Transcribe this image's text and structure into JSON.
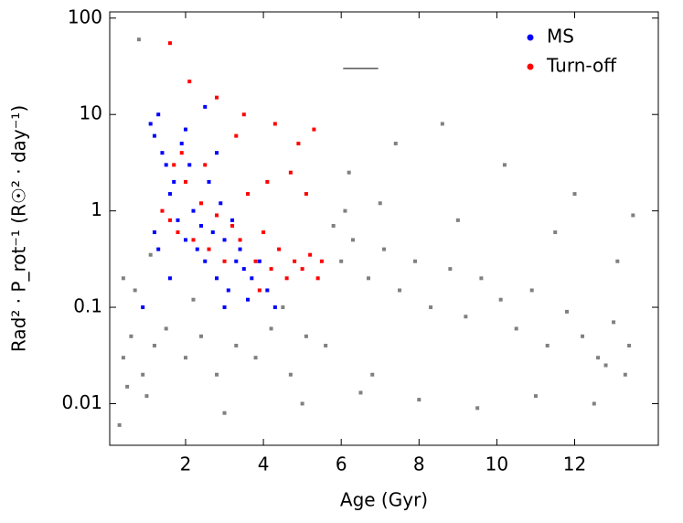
{
  "chart_data": {
    "type": "scatter",
    "xlabel": "Age (Gyr)",
    "ylabel": "Rad² · P_rot⁻¹ (R☉² · day⁻¹)",
    "xlim": [
      0.05,
      14.15
    ],
    "xticks": [
      2,
      4,
      6,
      8,
      10,
      12
    ],
    "ylim": [
      0.0037,
      116
    ],
    "yticks": [
      0.01,
      0.1,
      1,
      10,
      100
    ],
    "log_y": true,
    "legend": "upper right",
    "errorbar": {
      "x": 6.5,
      "y": 30,
      "xerr": 0.45,
      "color": "#000000"
    },
    "series": [
      {
        "color": "#808080",
        "x": [
          0.4,
          0.6,
          0.9,
          1.2,
          1.5,
          2.0,
          2.4,
          2.8,
          3.3,
          3.8,
          4.2,
          4.7,
          5.1,
          5.6,
          6.0,
          6.3,
          6.7,
          7.1,
          7.5,
          7.9,
          8.3,
          8.8,
          9.2,
          9.6,
          10.1,
          10.5,
          10.9,
          11.3,
          11.8,
          12.2,
          12.6,
          13.0,
          13.4,
          0.5,
          1.0,
          3.0,
          5.0,
          6.5,
          8.0,
          9.5,
          11.0,
          12.5,
          13.3,
          0.7,
          2.2,
          4.5,
          7.0,
          9.0,
          11.5,
          13.1,
          6.2,
          7.4,
          8.6,
          10.2,
          12.0,
          6.8,
          0.3,
          0.8,
          5.8,
          6.1,
          13.5,
          12.8,
          0.4,
          1.1
        ],
        "values": [
          0.03,
          0.05,
          0.02,
          0.04,
          0.06,
          0.03,
          0.05,
          0.02,
          0.04,
          0.03,
          0.06,
          0.02,
          0.05,
          0.04,
          0.3,
          0.5,
          0.2,
          0.4,
          0.15,
          0.3,
          0.1,
          0.25,
          0.08,
          0.2,
          0.12,
          0.06,
          0.15,
          0.04,
          0.09,
          0.05,
          0.03,
          0.07,
          0.04,
          0.015,
          0.012,
          0.008,
          0.01,
          0.013,
          0.011,
          0.009,
          0.012,
          0.01,
          0.02,
          0.15,
          0.12,
          0.1,
          1.2,
          0.8,
          0.6,
          0.3,
          2.5,
          5,
          8,
          3,
          1.5,
          0.02,
          0.006,
          60,
          0.7,
          1,
          0.9,
          0.025,
          0.2,
          0.35
        ]
      },
      {
        "name": "MS",
        "color": "#0000ff",
        "x": [
          1.1,
          1.2,
          1.3,
          1.4,
          1.5,
          1.6,
          1.7,
          1.8,
          1.9,
          2.0,
          2.1,
          2.2,
          2.3,
          2.4,
          2.5,
          2.6,
          2.7,
          2.8,
          2.9,
          3.0,
          3.1,
          3.2,
          3.3,
          3.4,
          3.5,
          3.6,
          3.7,
          3.9,
          4.1,
          4.3,
          1.3,
          1.6,
          2.0,
          2.5,
          3.0,
          0.9,
          1.2,
          2.8
        ],
        "values": [
          8,
          6,
          10,
          4,
          3,
          1.5,
          2,
          0.8,
          5,
          0.5,
          3,
          1,
          0.4,
          0.7,
          0.3,
          2,
          0.6,
          0.2,
          1.2,
          0.5,
          0.15,
          0.8,
          0.3,
          0.4,
          0.25,
          0.12,
          0.2,
          0.3,
          0.15,
          0.1,
          0.4,
          0.2,
          7,
          12,
          0.1,
          0.1,
          0.6,
          4
        ]
      },
      {
        "name": "Turn-off",
        "color": "#ff0000",
        "x": [
          1.4,
          1.6,
          1.8,
          2.0,
          2.2,
          2.4,
          2.6,
          2.8,
          3.0,
          3.2,
          3.4,
          3.6,
          3.8,
          4.0,
          4.2,
          4.4,
          4.6,
          4.8,
          5.0,
          5.2,
          5.4,
          5.5,
          1.6,
          2.1,
          2.8,
          3.5,
          4.3,
          4.9,
          5.3,
          1.9,
          2.5,
          3.3,
          4.1,
          4.7,
          5.1,
          1.7,
          3.9
        ],
        "values": [
          1,
          0.8,
          0.6,
          2,
          0.5,
          1.2,
          0.4,
          0.9,
          0.3,
          0.7,
          0.5,
          1.5,
          0.3,
          0.6,
          0.25,
          0.4,
          0.2,
          0.3,
          0.25,
          0.35,
          0.2,
          0.3,
          55,
          22,
          15,
          10,
          8,
          5,
          7,
          4,
          3,
          6,
          2,
          2.5,
          1.5,
          3,
          0.15
        ]
      }
    ]
  }
}
